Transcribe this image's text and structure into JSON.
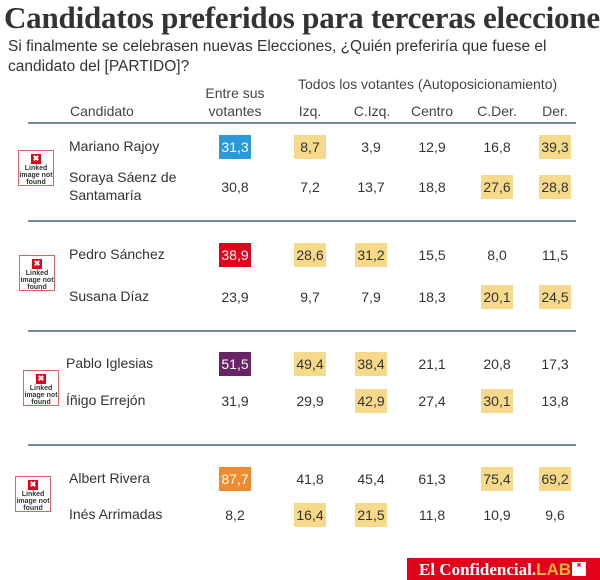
{
  "title": "Candidatos preferidos para terceras elecciones",
  "subtitle": "Si finalmente se celebrasen nuevas Elecciones, ¿Quién preferiría que fuese el candidato del [PARTIDO]?",
  "headers": {
    "group": "Todos los votantes (Autoposicionamiento)",
    "candidato": "Candidato",
    "entre_1": "Entre sus",
    "entre_2": "votantes",
    "izq": "Izq.",
    "cizq": "C.Izq.",
    "centro": "Centro",
    "cder": "C.Der.",
    "der": "Der."
  },
  "broken_image": {
    "label": "Linked image not found",
    "icon": "broken-image-icon"
  },
  "colors": {
    "highlight": "#f6d98a",
    "pp": "#2a9ad9",
    "psoe": "#e2001a",
    "podemos": "#6a2366",
    "cs": "#f08a30",
    "rule": "#6e8a90"
  },
  "rows": [
    {
      "name": "Mariano Rajoy",
      "values": [
        "31,3",
        "8,7",
        "3,9",
        "12,9",
        "16,8",
        "39,3"
      ],
      "party_color": "#2a9ad9",
      "highlight": [
        1,
        5
      ]
    },
    {
      "name": "Soraya Sáenz de Santamaría",
      "values": [
        "30,8",
        "7,2",
        "13,7",
        "18,8",
        "27,6",
        "28,8"
      ],
      "highlight": [
        4,
        5
      ]
    },
    {
      "name": "Pedro Sánchez",
      "values": [
        "38,9",
        "28,6",
        "31,2",
        "15,5",
        "8,0",
        "11,5"
      ],
      "party_color": "#e2001a",
      "highlight": [
        1,
        2
      ]
    },
    {
      "name": "Susana Díaz",
      "values": [
        "23,9",
        "9,7",
        "7,9",
        "18,3",
        "20,1",
        "24,5"
      ],
      "highlight": [
        4,
        5
      ]
    },
    {
      "name": "Pablo Iglesias",
      "values": [
        "51,5",
        "49,4",
        "38,4",
        "21,1",
        "20,8",
        "17,3"
      ],
      "party_color": "#6a2366",
      "highlight": [
        1,
        2
      ]
    },
    {
      "name": "Íñigo Errejón",
      "values": [
        "31,9",
        "29,9",
        "42,9",
        "27,4",
        "30,1",
        "13,8"
      ],
      "highlight": [
        2,
        4
      ]
    },
    {
      "name": "Albert Rivera",
      "values": [
        "87,7",
        "41,8",
        "45,4",
        "61,3",
        "75,4",
        "69,2"
      ],
      "party_color": "#f08a30",
      "highlight": [
        4,
        5
      ]
    },
    {
      "name": "Inés Arrimadas",
      "values": [
        "8,2",
        "16,4",
        "21,5",
        "11,8",
        "10,9",
        "9,6"
      ],
      "highlight": [
        1,
        2
      ]
    }
  ],
  "footer": {
    "brand": "El Confidencial.",
    "lab": "LAB"
  }
}
